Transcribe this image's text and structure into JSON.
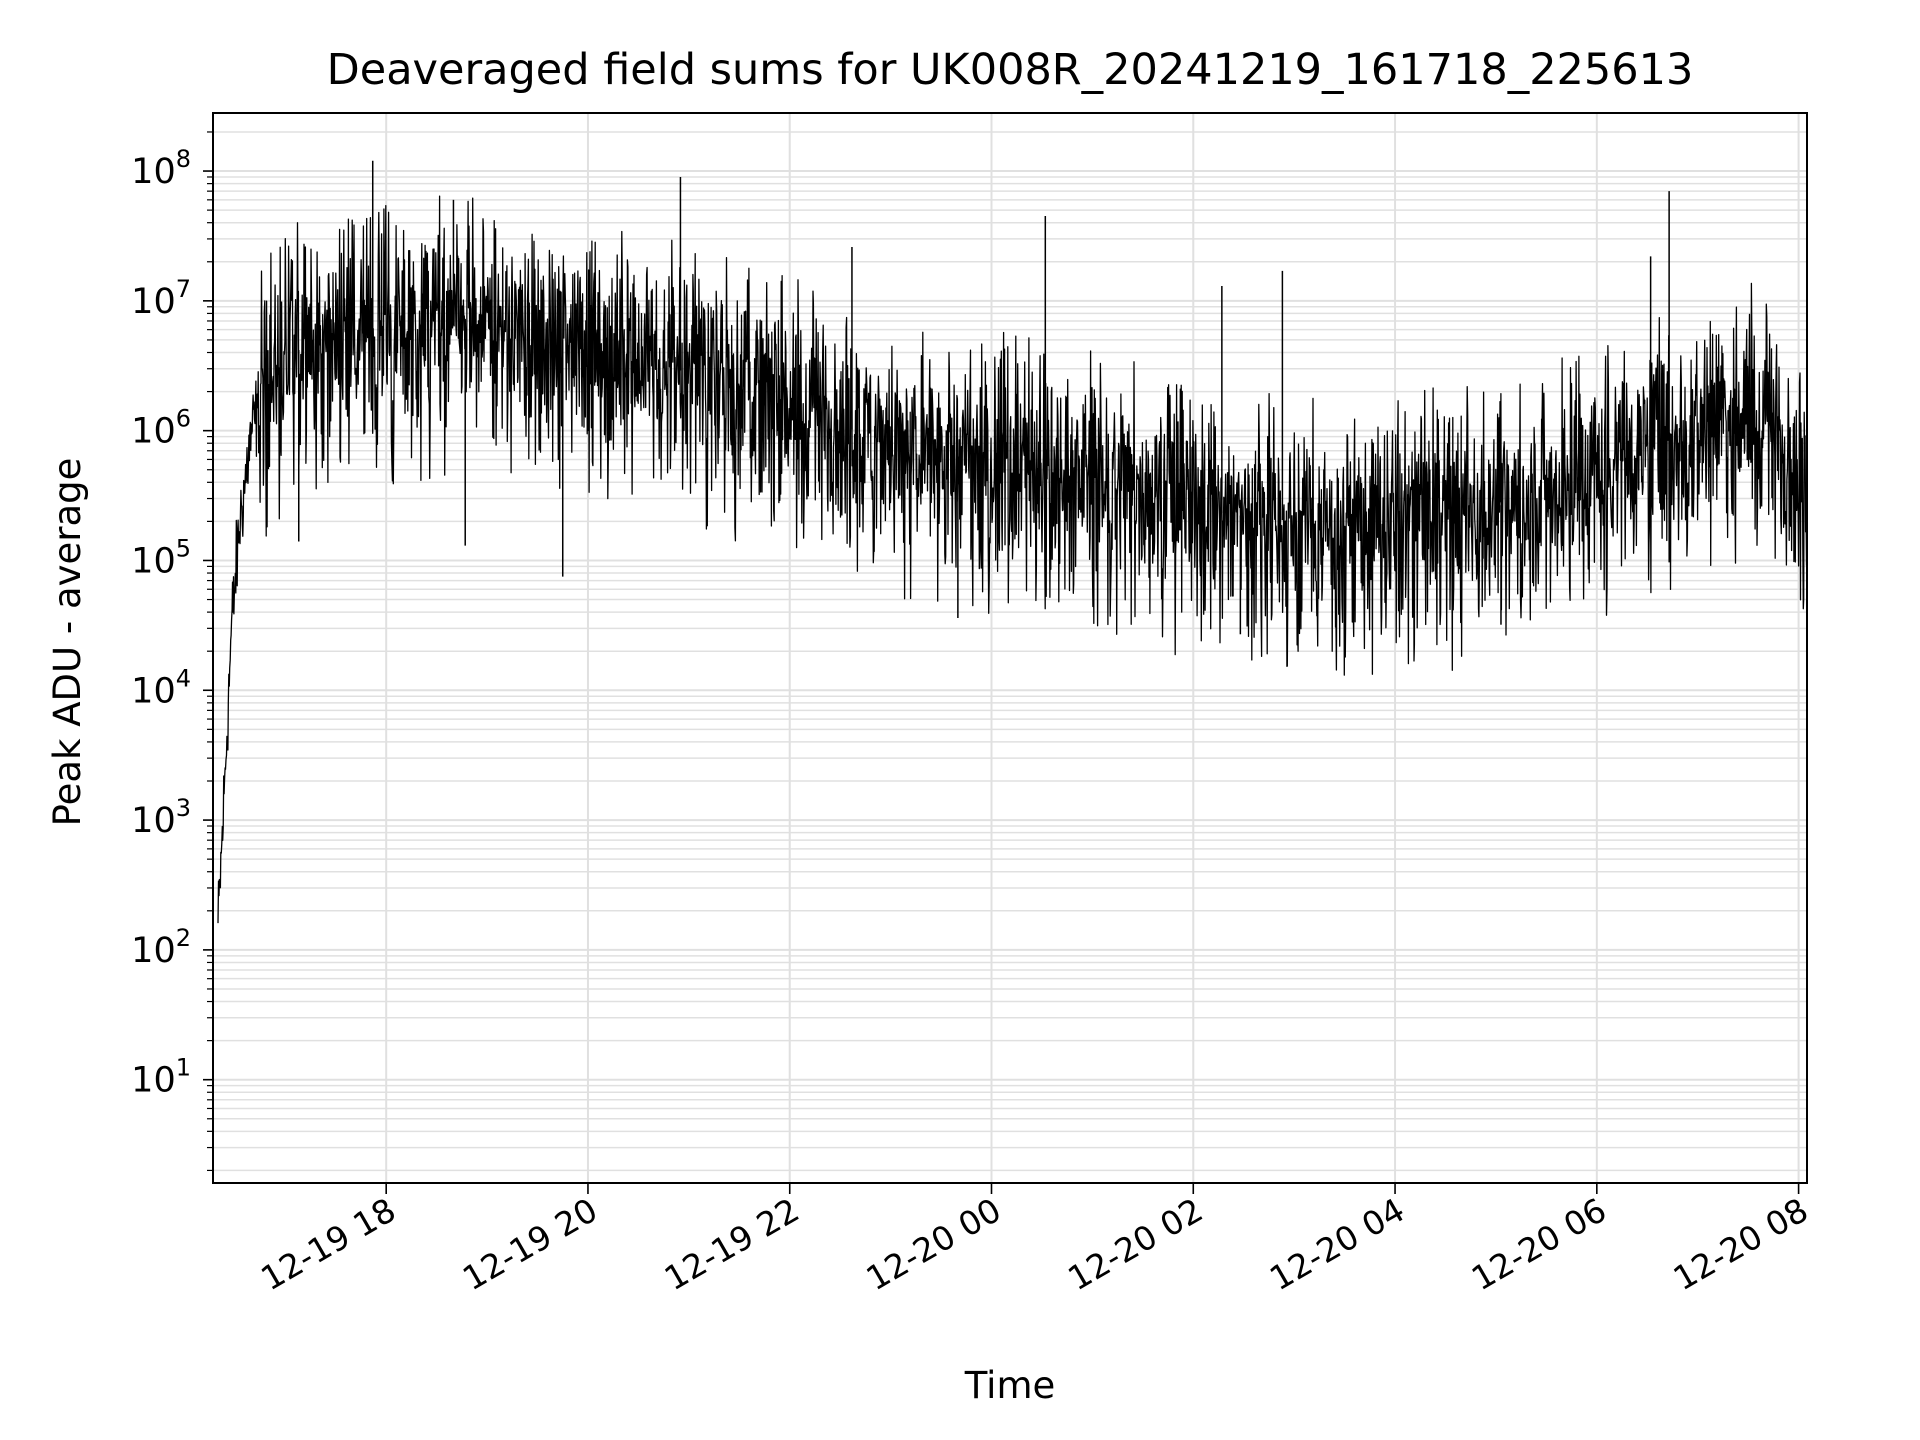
{
  "chart_data": {
    "type": "line",
    "title": "Deaveraged field sums for UK008R_20241219_161718_225613",
    "xlabel": "Time",
    "ylabel": "Peak ADU - average",
    "xlim": [
      "2024-12-19 16:17",
      "2024-12-20 08:05"
    ],
    "ylim": [
      1.6,
      280000000.0
    ],
    "yscale": "log",
    "grid": true,
    "grid_minor": true,
    "line_color": "#000000",
    "grid_color": "#e0e0e0",
    "x_ticks": [
      {
        "value": "2024-12-19 18:00",
        "label": "12-19 18"
      },
      {
        "value": "2024-12-19 20:00",
        "label": "12-19 20"
      },
      {
        "value": "2024-12-19 22:00",
        "label": "12-19 22"
      },
      {
        "value": "2024-12-20 00:00",
        "label": "12-20 00"
      },
      {
        "value": "2024-12-20 02:00",
        "label": "12-20 02"
      },
      {
        "value": "2024-12-20 04:00",
        "label": "12-20 04"
      },
      {
        "value": "2024-12-20 06:00",
        "label": "12-20 06"
      },
      {
        "value": "2024-12-20 08:00",
        "label": "12-20 08"
      }
    ],
    "y_ticks": [
      {
        "value": 10,
        "label": "10",
        "exp": "1"
      },
      {
        "value": 100,
        "label": "10",
        "exp": "2"
      },
      {
        "value": 1000,
        "label": "10",
        "exp": "3"
      },
      {
        "value": 10000,
        "label": "10",
        "exp": "4"
      },
      {
        "value": 100000,
        "label": "10",
        "exp": "5"
      },
      {
        "value": 1000000,
        "label": "10",
        "exp": "6"
      },
      {
        "value": 10000000,
        "label": "10",
        "exp": "7"
      },
      {
        "value": 100000000,
        "label": "10",
        "exp": "8"
      }
    ],
    "series": [
      {
        "x": [
          "2024-12-19 16:20",
          "2024-12-19 16:24",
          "2024-12-19 16:28",
          "2024-12-19 16:33",
          "2024-12-19 16:40",
          "2024-12-19 16:50",
          "2024-12-19 17:05",
          "2024-12-19 17:20",
          "2024-12-19 17:40",
          "2024-12-19 18:00",
          "2024-12-19 18:30",
          "2024-12-19 19:00",
          "2024-12-19 19:30",
          "2024-12-19 20:00",
          "2024-12-19 20:30",
          "2024-12-19 21:00",
          "2024-12-19 21:30",
          "2024-12-19 22:00",
          "2024-12-19 22:30",
          "2024-12-19 23:00",
          "2024-12-19 23:30",
          "2024-12-20 00:00",
          "2024-12-20 00:30",
          "2024-12-20 01:00",
          "2024-12-20 01:30",
          "2024-12-20 02:00",
          "2024-12-20 02:30",
          "2024-12-20 03:00",
          "2024-12-20 03:30",
          "2024-12-20 04:00",
          "2024-12-20 04:30",
          "2024-12-20 05:00",
          "2024-12-20 05:30",
          "2024-12-20 06:00",
          "2024-12-20 06:30",
          "2024-12-20 07:00",
          "2024-12-20 07:30",
          "2024-12-20 07:50",
          "2024-12-20 08:05"
        ],
        "y": [
          150,
          2000,
          30000,
          200000,
          1000000,
          2500000,
          4000000,
          5000000,
          5500000,
          6000000,
          6500000,
          6500000,
          5500000,
          4500000,
          3500000,
          2800000,
          2200000,
          1600000,
          1100000,
          800000,
          650000,
          600000,
          550000,
          450000,
          350000,
          250000,
          220000,
          200000,
          200000,
          200000,
          220000,
          260000,
          330000,
          500000,
          800000,
          1100000,
          1500000,
          800000,
          300000
        ]
      }
    ],
    "spikes": [
      {
        "x": "2024-12-19 17:52",
        "y": 120000000
      },
      {
        "x": "2024-12-19 18:40",
        "y": 60000000
      },
      {
        "x": "2024-12-19 20:55",
        "y": 90000000
      },
      {
        "x": "2024-12-19 22:37",
        "y": 26000000
      },
      {
        "x": "2024-12-20 00:32",
        "y": 45000000
      },
      {
        "x": "2024-12-20 02:17",
        "y": 13000000
      },
      {
        "x": "2024-12-20 02:53",
        "y": 17000000
      },
      {
        "x": "2024-12-20 06:32",
        "y": 22000000
      },
      {
        "x": "2024-12-20 06:43",
        "y": 70000000
      }
    ],
    "dips": [
      {
        "x": "2024-12-19 17:08",
        "y": 140000
      },
      {
        "x": "2024-12-19 18:47",
        "y": 130000
      },
      {
        "x": "2024-12-19 19:45",
        "y": 75000
      },
      {
        "x": "2024-12-19 23:40",
        "y": 36000
      },
      {
        "x": "2024-12-20 02:28",
        "y": 27000
      },
      {
        "x": "2024-12-20 05:03",
        "y": 32000
      }
    ]
  }
}
